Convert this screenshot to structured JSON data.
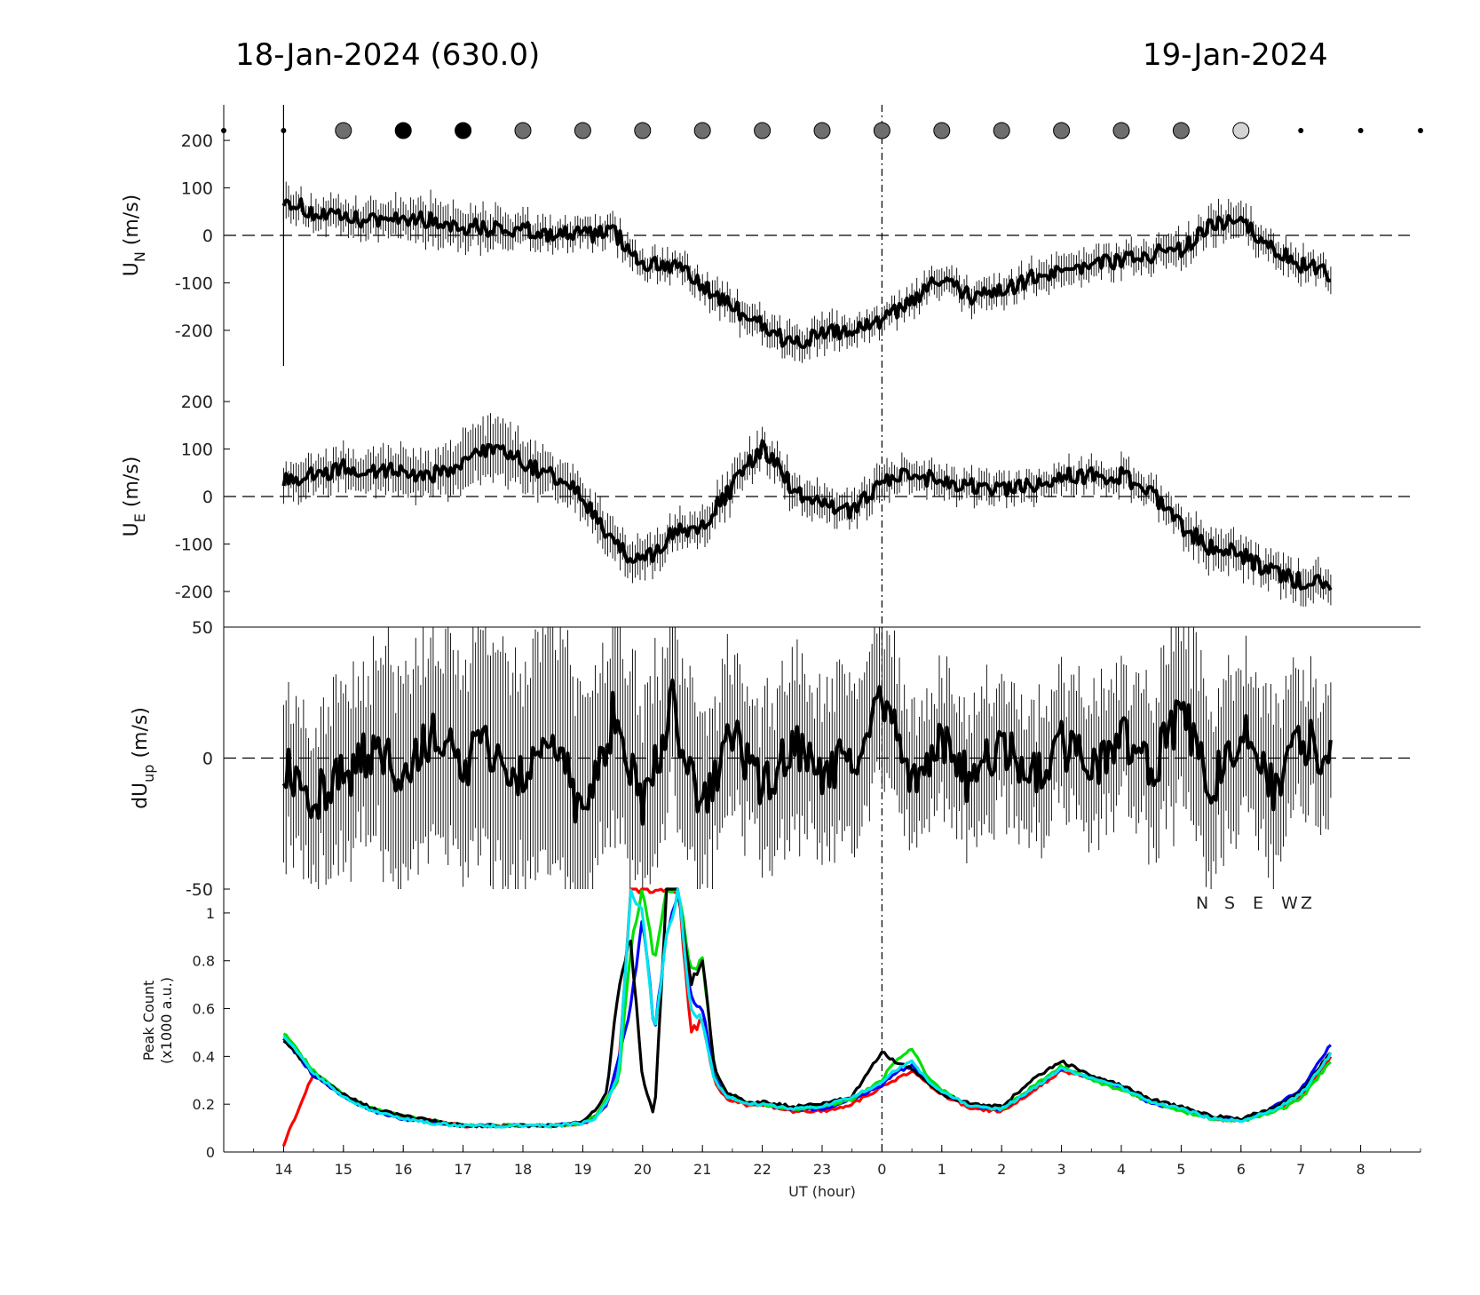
{
  "header": {
    "left_title": "18-Jan-2024 (630.0)",
    "right_title": "19-Jan-2024"
  },
  "colors": {
    "N": "#000000",
    "S": "#ff0000",
    "E": "#0000ff",
    "W": "#00e000",
    "Z": "#00e5ee",
    "marker_gray": "#6e6e6e",
    "marker_light": "#d4d4d4"
  },
  "legend": [
    "N",
    "S",
    "E",
    "W",
    "Z"
  ],
  "chart_data": [
    {
      "type": "line",
      "panel": "un",
      "ylabel_main": "U",
      "ylabel_sub": "N",
      "ylabel_unit": " (m/s)",
      "ylim": [
        -275,
        275
      ],
      "yticks": [
        200,
        100,
        0,
        -100,
        -200
      ],
      "ytick_labels": [
        "200",
        "100",
        "0",
        "-100",
        "-200"
      ],
      "reference_line": 0,
      "markers": {
        "x": [
          -11,
          -10,
          -9,
          -8,
          -7,
          -6,
          -5,
          -4,
          -3,
          -2,
          -1,
          0,
          1,
          2,
          3,
          4,
          5,
          6,
          7,
          8,
          9
        ],
        "kind": [
          "dot",
          "dot",
          "gray",
          "black",
          "black",
          "gray",
          "gray",
          "gray",
          "gray",
          "gray",
          "gray",
          "gray",
          "gray",
          "gray",
          "gray",
          "gray",
          "gray",
          "light",
          "dot",
          "dot",
          "dot"
        ]
      },
      "series": [
        {
          "x": [
            -10.0,
            -9.5,
            -9.0,
            -8.5,
            -8.0,
            -7.5,
            -7.0,
            -6.5,
            -6.0,
            -5.5,
            -5.0,
            -4.5,
            -4.0,
            -3.5,
            -3.0,
            -2.5,
            -2.0,
            -1.5,
            -1.0,
            -0.5,
            0.0,
            0.5,
            1.0,
            1.5,
            2.0,
            2.5,
            3.0,
            3.5,
            4.0,
            4.5,
            5.0,
            5.5,
            6.0,
            6.5,
            7.0,
            7.5
          ],
          "y": [
            80,
            45,
            35,
            30,
            40,
            30,
            20,
            15,
            10,
            5,
            0,
            10,
            -60,
            -60,
            -110,
            -150,
            -190,
            -230,
            -210,
            -200,
            -180,
            -140,
            -90,
            -130,
            -120,
            -90,
            -70,
            -60,
            -50,
            -40,
            -30,
            20,
            30,
            -30,
            -60,
            -85
          ],
          "err": [
            35,
            30,
            40,
            35,
            40,
            45,
            40,
            40,
            35,
            30,
            30,
            30,
            30,
            30,
            30,
            35,
            35,
            35,
            35,
            30,
            25,
            30,
            30,
            30,
            30,
            30,
            30,
            30,
            30,
            30,
            35,
            35,
            35,
            30,
            30,
            30
          ]
        }
      ]
    },
    {
      "type": "line",
      "panel": "ue",
      "ylabel_main": "U",
      "ylabel_sub": "E",
      "ylabel_unit": " (m/s)",
      "ylim": [
        -275,
        275
      ],
      "yticks": [
        200,
        100,
        0,
        -100,
        -200
      ],
      "ytick_labels": [
        "200",
        "100",
        "0",
        "-100",
        "-200"
      ],
      "reference_line": 0,
      "series": [
        {
          "x": [
            -10.0,
            -9.5,
            -9.0,
            -8.5,
            -8.0,
            -7.5,
            -7.0,
            -6.5,
            -6.0,
            -5.5,
            -5.0,
            -4.5,
            -4.0,
            -3.5,
            -3.0,
            -2.5,
            -2.0,
            -1.5,
            -1.0,
            -0.5,
            0.0,
            0.5,
            1.0,
            1.5,
            2.0,
            2.5,
            3.0,
            3.5,
            4.0,
            4.5,
            5.0,
            5.5,
            6.0,
            6.5,
            7.0,
            7.5
          ],
          "y": [
            40,
            45,
            60,
            55,
            55,
            45,
            70,
            105,
            75,
            40,
            0,
            -100,
            -140,
            -80,
            -60,
            20,
            105,
            20,
            -20,
            -30,
            30,
            50,
            30,
            25,
            10,
            25,
            45,
            45,
            45,
            10,
            -60,
            -110,
            -120,
            -160,
            -180,
            -180
          ],
          "err": [
            35,
            40,
            40,
            45,
            45,
            45,
            60,
            60,
            55,
            45,
            40,
            40,
            40,
            35,
            35,
            40,
            35,
            35,
            35,
            35,
            35,
            30,
            30,
            30,
            30,
            30,
            30,
            30,
            30,
            30,
            35,
            40,
            40,
            35,
            35,
            35
          ]
        }
      ]
    },
    {
      "type": "line",
      "panel": "dup",
      "ylabel_main": "dU",
      "ylabel_sub": "up",
      "ylabel_unit": " (m/s)",
      "ylim": [
        -50,
        50
      ],
      "yticks": [
        50,
        0,
        -50
      ],
      "ytick_labels": [
        "50",
        "0",
        "-50"
      ],
      "reference_line": 0,
      "series": [
        {
          "x": [
            -10.0,
            -9.5,
            -9.0,
            -8.5,
            -8.0,
            -7.5,
            -7.0,
            -6.5,
            -6.0,
            -5.5,
            -5.0,
            -4.5,
            -4.0,
            -3.5,
            -3.0,
            -2.5,
            -2.0,
            -1.5,
            -1.0,
            -0.5,
            0.0,
            0.5,
            1.0,
            1.5,
            2.0,
            2.5,
            3.0,
            3.5,
            4.0,
            4.5,
            5.0,
            5.5,
            6.0,
            6.5,
            7.0,
            7.5
          ],
          "y": [
            0,
            -15,
            -8,
            5,
            -5,
            8,
            -2,
            5,
            -10,
            10,
            -25,
            15,
            -20,
            20,
            -22,
            10,
            -12,
            5,
            -5,
            0,
            20,
            -5,
            5,
            -10,
            8,
            -8,
            5,
            -5,
            8,
            -5,
            18,
            -10,
            10,
            -12,
            8,
            0
          ],
          "err": [
            30,
            30,
            35,
            35,
            40,
            40,
            45,
            45,
            45,
            45,
            40,
            40,
            40,
            35,
            35,
            30,
            30,
            30,
            30,
            30,
            30,
            25,
            25,
            25,
            25,
            25,
            25,
            25,
            25,
            30,
            35,
            35,
            30,
            30,
            25,
            25
          ]
        }
      ]
    },
    {
      "type": "line",
      "panel": "peak",
      "ylabel_line1": "Peak Count",
      "ylabel_line2": "(x1000 a.u.)",
      "ylim": [
        0,
        1.1
      ],
      "yticks": [
        1,
        0.8,
        0.6,
        0.4,
        0.2,
        0
      ],
      "ytick_labels": [
        "1",
        "0.8",
        "0.6",
        "0.4",
        "0.2",
        "0"
      ],
      "xlabel": "UT (hour)",
      "xlim": [
        -11,
        9
      ],
      "xticks": [
        -10,
        -9,
        -8,
        -7,
        -6,
        -5,
        -4,
        -3,
        -2,
        -1,
        0,
        1,
        2,
        3,
        4,
        5,
        6,
        7,
        8
      ],
      "xtick_labels": [
        "14",
        "15",
        "16",
        "17",
        "18",
        "19",
        "20",
        "21",
        "22",
        "23",
        "0",
        "1",
        "2",
        "3",
        "4",
        "5",
        "6",
        "7",
        "8"
      ],
      "x": [
        -10.0,
        -9.5,
        -9.0,
        -8.5,
        -8.0,
        -7.5,
        -7.0,
        -6.5,
        -6.0,
        -5.5,
        -5.0,
        -4.8,
        -4.6,
        -4.4,
        -4.2,
        -4.0,
        -3.8,
        -3.6,
        -3.4,
        -3.2,
        -3.0,
        -2.8,
        -2.6,
        -2.4,
        -2.2,
        -2.0,
        -1.5,
        -1.0,
        -0.5,
        0.0,
        0.2,
        0.5,
        0.8,
        1.0,
        1.5,
        2.0,
        2.5,
        3.0,
        3.5,
        4.0,
        4.5,
        5.0,
        5.5,
        6.0,
        6.5,
        7.0,
        7.5
      ],
      "series": [
        {
          "name": "N",
          "values": [
            0.47,
            0.33,
            0.24,
            0.18,
            0.15,
            0.13,
            0.11,
            0.11,
            0.11,
            0.11,
            0.13,
            0.17,
            0.25,
            0.7,
            0.9,
            0.3,
            0.15,
            1.1,
            1.1,
            0.7,
            0.8,
            0.35,
            0.25,
            0.23,
            0.2,
            0.21,
            0.19,
            0.2,
            0.23,
            0.42,
            0.38,
            0.35,
            0.28,
            0.24,
            0.2,
            0.19,
            0.3,
            0.38,
            0.32,
            0.28,
            0.22,
            0.19,
            0.15,
            0.14,
            0.18,
            0.25,
            0.42
          ]
        },
        {
          "name": "S",
          "values": [
            0.03,
            0.33,
            0.23,
            0.18,
            0.15,
            0.13,
            0.11,
            0.11,
            0.11,
            0.11,
            0.12,
            0.14,
            0.2,
            0.35,
            1.1,
            1.1,
            1.1,
            1.1,
            1.1,
            0.5,
            0.55,
            0.3,
            0.22,
            0.21,
            0.19,
            0.2,
            0.17,
            0.17,
            0.2,
            0.27,
            0.3,
            0.34,
            0.28,
            0.24,
            0.18,
            0.17,
            0.25,
            0.34,
            0.31,
            0.27,
            0.21,
            0.18,
            0.14,
            0.13,
            0.17,
            0.23,
            0.4
          ]
        },
        {
          "name": "E",
          "values": [
            0.48,
            0.32,
            0.23,
            0.17,
            0.14,
            0.12,
            0.11,
            0.11,
            0.11,
            0.11,
            0.12,
            0.15,
            0.2,
            0.4,
            0.6,
            1.0,
            0.5,
            0.9,
            1.1,
            0.65,
            0.6,
            0.32,
            0.23,
            0.22,
            0.2,
            0.2,
            0.18,
            0.18,
            0.22,
            0.28,
            0.33,
            0.36,
            0.29,
            0.25,
            0.19,
            0.18,
            0.26,
            0.35,
            0.31,
            0.27,
            0.2,
            0.18,
            0.14,
            0.13,
            0.18,
            0.26,
            0.45
          ]
        },
        {
          "name": "W",
          "values": [
            0.5,
            0.34,
            0.24,
            0.18,
            0.15,
            0.13,
            0.11,
            0.11,
            0.11,
            0.11,
            0.12,
            0.15,
            0.22,
            0.3,
            0.85,
            1.1,
            0.8,
            1.1,
            1.1,
            0.75,
            0.8,
            0.35,
            0.24,
            0.22,
            0.2,
            0.2,
            0.18,
            0.19,
            0.22,
            0.3,
            0.38,
            0.43,
            0.3,
            0.26,
            0.19,
            0.18,
            0.27,
            0.36,
            0.3,
            0.26,
            0.21,
            0.17,
            0.14,
            0.13,
            0.16,
            0.22,
            0.38
          ]
        },
        {
          "name": "Z",
          "values": [
            0.49,
            0.33,
            0.23,
            0.17,
            0.14,
            0.12,
            0.11,
            0.11,
            0.11,
            0.11,
            0.12,
            0.14,
            0.21,
            0.32,
            1.1,
            1.0,
            0.5,
            0.9,
            1.1,
            0.6,
            0.55,
            0.3,
            0.23,
            0.22,
            0.2,
            0.2,
            0.18,
            0.19,
            0.23,
            0.29,
            0.34,
            0.38,
            0.29,
            0.25,
            0.19,
            0.18,
            0.26,
            0.35,
            0.31,
            0.27,
            0.21,
            0.18,
            0.14,
            0.13,
            0.17,
            0.24,
            0.41
          ]
        }
      ]
    }
  ]
}
